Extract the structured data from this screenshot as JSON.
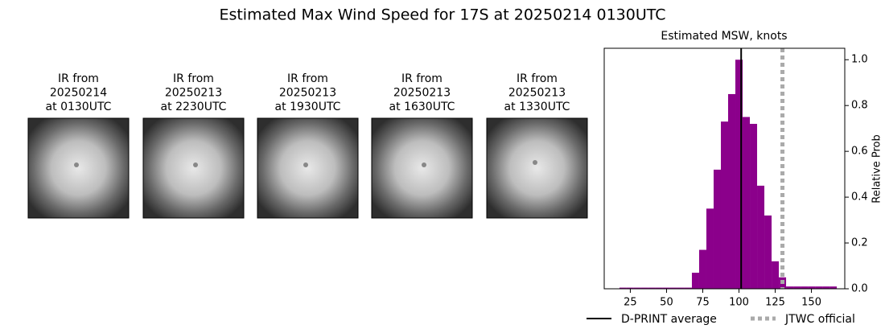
{
  "chart_data": {
    "type": "histogram",
    "title": "Estimated Max Wind Speed for 17S at 20250214 0130UTC",
    "panels": [
      {
        "label": [
          "IR from",
          "20250214",
          "at 0130UTC"
        ]
      },
      {
        "label": [
          "IR from",
          "20250213",
          "at 2230UTC"
        ]
      },
      {
        "label": [
          "IR from",
          "20250213",
          "at 1930UTC"
        ]
      },
      {
        "label": [
          "IR from",
          "20250213",
          "at 1630UTC"
        ]
      },
      {
        "label": [
          "IR from",
          "20250213",
          "at 1330UTC"
        ]
      }
    ],
    "subtitle": "Estimated MSW, knots",
    "y_label": "Relative Prob",
    "color": "#8b008b",
    "bins": [
      17.5,
      22.5,
      27.5,
      32.5,
      37.5,
      42.5,
      47.5,
      52.5,
      57.5,
      62.5,
      67.5,
      72.5,
      77.5,
      82.5,
      87.5,
      92.5,
      97.5,
      102.5,
      107.5,
      112.5,
      117.5,
      122.5,
      127.5,
      132.5,
      137.5,
      142.5,
      147.5,
      152.5,
      157.5,
      162.5,
      167.5
    ],
    "counts": [
      0.005,
      0.005,
      0.005,
      0.005,
      0.005,
      0.005,
      0.005,
      0.005,
      0.005,
      0.005,
      0.07,
      0.17,
      0.35,
      0.52,
      0.73,
      0.85,
      1.0,
      0.75,
      0.72,
      0.45,
      0.32,
      0.12,
      0.05,
      0.01,
      0.01,
      0.01,
      0.01,
      0.01,
      0.01,
      0.01
    ],
    "xlim": [
      7,
      173
    ],
    "ylim": [
      0,
      1.05
    ],
    "xticks": [
      25,
      50,
      75,
      100,
      125,
      150
    ],
    "yticks": [
      {
        "value": 0,
        "label": "0.0"
      },
      {
        "value": 0.2,
        "label": "0.2"
      },
      {
        "value": 0.4,
        "label": "0.4"
      },
      {
        "value": 0.6,
        "label": "0.6"
      },
      {
        "value": 0.8,
        "label": "0.8"
      },
      {
        "value": 1.0,
        "label": "1.0"
      }
    ],
    "reference_lines": [
      {
        "name": "D-PRINT average",
        "value": 101.5,
        "color": "#000000",
        "style": "solid"
      },
      {
        "name": "JTWC official",
        "value": 130,
        "color": "#aaaaaa",
        "style": "dotted"
      }
    ]
  }
}
